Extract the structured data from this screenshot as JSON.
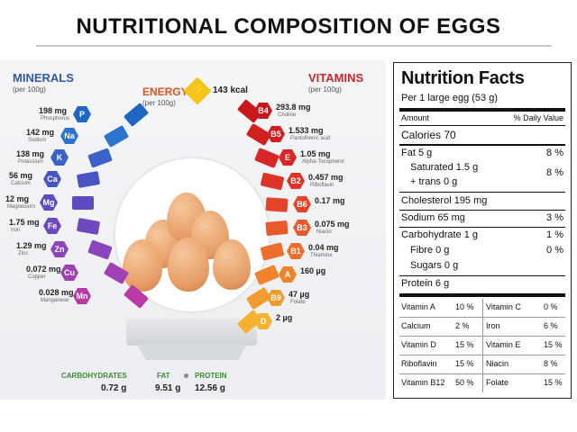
{
  "title": "NUTRITIONAL COMPOSITION OF EGGS",
  "infographic": {
    "minerals_heading": "MINERALS",
    "minerals_unit": "(per 100g)",
    "vitamins_heading": "VITAMINS",
    "vitamins_unit": "(per 100g)",
    "energy_heading": "ENERGY",
    "energy_unit": "(per 100g)",
    "energy_value": "143 kcal",
    "minerals": [
      {
        "symbol": "P",
        "value": "198 mg",
        "name": "Phosphorus"
      },
      {
        "symbol": "Na",
        "value": "142 mg",
        "name": "Sodium"
      },
      {
        "symbol": "K",
        "value": "138 mg",
        "name": "Potassium"
      },
      {
        "symbol": "Ca",
        "value": "56 mg",
        "name": "Calcium"
      },
      {
        "symbol": "Mg",
        "value": "12 mg",
        "name": "Magnesium"
      },
      {
        "symbol": "Fe",
        "value": "1.75 mg",
        "name": "Iron"
      },
      {
        "symbol": "Zn",
        "value": "1.29 mg",
        "name": "Zinc"
      },
      {
        "symbol": "Cu",
        "value": "0.072 mg",
        "name": "Copper"
      },
      {
        "symbol": "Mn",
        "value": "0.028 mg",
        "name": "Manganese"
      }
    ],
    "vitamins": [
      {
        "symbol": "B4",
        "value": "293.8 mg",
        "name": "Choline"
      },
      {
        "symbol": "B5",
        "value": "1.533 mg",
        "name": "Pantothenic acid"
      },
      {
        "symbol": "E",
        "value": "1.05 mg",
        "name": "Alpha-Tocopherol"
      },
      {
        "symbol": "B2",
        "value": "0.457 mg",
        "name": "Riboflavin"
      },
      {
        "symbol": "B6",
        "value": "0.17 mg",
        "name": ""
      },
      {
        "symbol": "B3",
        "value": "0.075 mg",
        "name": "Niacin"
      },
      {
        "symbol": "B1",
        "value": "0.04 mg",
        "name": "Thiamine"
      },
      {
        "symbol": "A",
        "value": "160 µg",
        "name": ""
      },
      {
        "symbol": "B9",
        "value": "47 µg",
        "name": "Folate"
      },
      {
        "symbol": "D",
        "value": "2 µg",
        "name": ""
      }
    ],
    "macros": [
      {
        "label": "CARBOHYDRATES",
        "value": "0.72 g",
        "color": "#3c8a2e"
      },
      {
        "label": "FAT",
        "value": "9.51 g",
        "color": "#3c8a2e"
      },
      {
        "label": "PROTEIN",
        "value": "12.56 g",
        "color": "#3c8a2e"
      }
    ]
  },
  "nutrition_facts": {
    "title": "Nutrition Facts",
    "serving": "Per 1 large egg (53 g)",
    "amount_header": "Amount",
    "dv_header": "% Daily Value",
    "calories": "Calories 70",
    "fat": "Fat 5 g",
    "fat_dv": "8 %",
    "saturated": "Saturated 1.5 g",
    "trans": "+ trans 0 g",
    "sat_dv": "8 %",
    "cholesterol": "Cholesterol 195 mg",
    "sodium": "Sodium 65 mg",
    "sodium_dv": "3 %",
    "carbohydrate": "Carbohydrate 1 g",
    "carb_dv": "1 %",
    "fibre": "Fibre 0 g",
    "fibre_dv": "0 %",
    "sugars": "Sugars 0 g",
    "protein": "Protein 6 g",
    "vitamin_rows": [
      {
        "a": "Vitamin A",
        "av": "10 %",
        "b": "Vitamin C",
        "bv": "0 %"
      },
      {
        "a": "Calcium",
        "av": "2 %",
        "b": "Iron",
        "bv": "6 %"
      },
      {
        "a": "Vitamin D",
        "av": "15 %",
        "b": "Vitamin E",
        "bv": "15 %"
      },
      {
        "a": "Riboflavin",
        "av": "15 %",
        "b": "Niacin",
        "bv": "8 %"
      },
      {
        "a": "Vitamin B12",
        "av": "50 %",
        "b": "Folate",
        "bv": "15 %"
      }
    ]
  }
}
